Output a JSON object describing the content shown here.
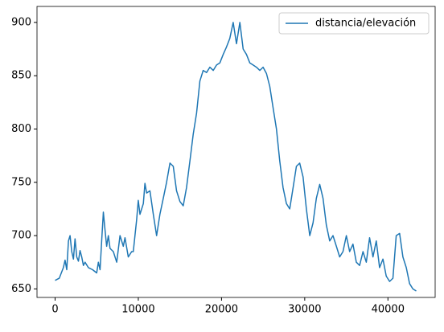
{
  "chart_data": {
    "type": "line",
    "x": [
      0,
      500,
      1000,
      1200,
      1400,
      1600,
      1800,
      2000,
      2200,
      2400,
      2600,
      2800,
      3000,
      3200,
      3400,
      3600,
      4000,
      4500,
      5000,
      5200,
      5400,
      5600,
      5800,
      6000,
      6200,
      6400,
      6600,
      7000,
      7400,
      7800,
      8200,
      8400,
      8800,
      9200,
      9400,
      9800,
      10000,
      10200,
      10600,
      10800,
      11000,
      11400,
      11800,
      12200,
      12600,
      13000,
      13400,
      13800,
      14200,
      14600,
      15000,
      15400,
      15800,
      16200,
      16600,
      17000,
      17400,
      17800,
      18200,
      18600,
      19000,
      19400,
      19800,
      20200,
      20600,
      21000,
      21400,
      21800,
      22200,
      22600,
      23000,
      23400,
      23800,
      24200,
      24600,
      25000,
      25400,
      25800,
      26200,
      26600,
      27000,
      27400,
      27800,
      28200,
      28600,
      29000,
      29400,
      29800,
      30200,
      30600,
      31000,
      31400,
      31800,
      32200,
      32600,
      33000,
      33400,
      33800,
      34200,
      34600,
      35000,
      35400,
      35800,
      36200,
      36600,
      37000,
      37400,
      37800,
      38200,
      38600,
      39000,
      39400,
      39800,
      40200,
      40600,
      41000,
      41400,
      41800,
      42200,
      42600,
      43000,
      43400
    ],
    "series": [
      {
        "name": "distancia/elevación",
        "color": "#1f77b4",
        "values": [
          658,
          660,
          670,
          677,
          668,
          695,
          700,
          685,
          678,
          697,
          680,
          676,
          686,
          680,
          672,
          675,
          670,
          668,
          665,
          675,
          668,
          695,
          722,
          705,
          690,
          700,
          688,
          685,
          675,
          700,
          690,
          698,
          680,
          685,
          685,
          715,
          733,
          720,
          730,
          749,
          740,
          742,
          720,
          700,
          720,
          735,
          750,
          768,
          765,
          742,
          732,
          728,
          745,
          770,
          795,
          815,
          845,
          855,
          853,
          858,
          855,
          860,
          862,
          870,
          877,
          885,
          900,
          880,
          900,
          875,
          870,
          862,
          860,
          858,
          855,
          858,
          852,
          840,
          820,
          800,
          770,
          745,
          730,
          725,
          745,
          765,
          768,
          755,
          725,
          700,
          712,
          735,
          748,
          735,
          710,
          695,
          700,
          690,
          680,
          685,
          700,
          685,
          692,
          675,
          672,
          685,
          675,
          698,
          680,
          695,
          670,
          678,
          662,
          657,
          660,
          700,
          702,
          680,
          670,
          655,
          650,
          648
        ]
      }
    ],
    "xlim": [
      -2175,
      45675
    ],
    "ylim": [
      642,
      915
    ],
    "xticks": [
      0,
      10000,
      20000,
      30000,
      40000
    ],
    "yticks": [
      650,
      700,
      750,
      800,
      850,
      900
    ],
    "legend": "upper right"
  }
}
